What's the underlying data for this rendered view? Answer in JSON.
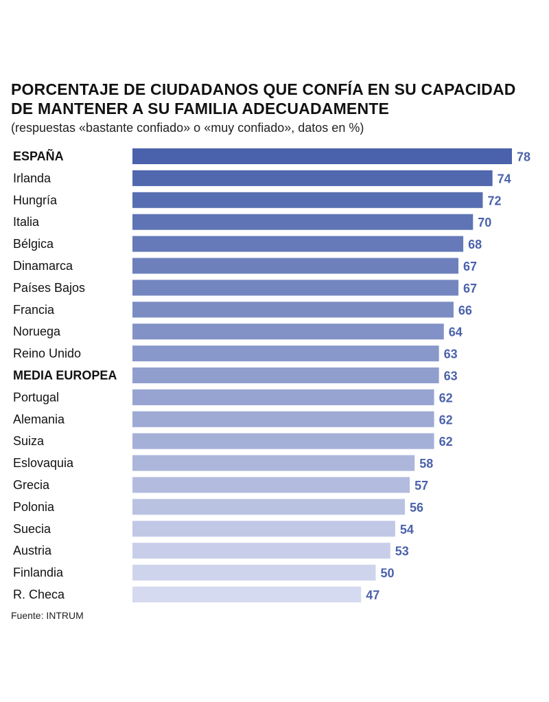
{
  "title": "PORCENTAJE DE CIUDADANOS QUE CONFÍA EN SU CAPACIDAD DE MANTENER A SU FAMILIA ADECUADAMENTE",
  "subtitle": "(respuestas «bastante confiado» o «muy confiado», datos en %)",
  "source": "Fuente: INTRUM",
  "colors": {
    "bar_dark": "#4a62ab",
    "bar_light": "#d6daf0",
    "value_text": "#4a62ab"
  },
  "chart_data": {
    "type": "bar",
    "orientation": "horizontal",
    "categories": [
      "ESPAÑA",
      "Irlanda",
      "Hungría",
      "Italia",
      "Bélgica",
      "Dinamarca",
      "Países Bajos",
      "Francia",
      "Noruega",
      "Reino Unido",
      "MEDIA EUROPEA",
      "Portugal",
      "Alemania",
      "Suiza",
      "Eslovaquia",
      "Grecia",
      "Polonia",
      "Suecia",
      "Austria",
      "Finlandia",
      "R. Checa"
    ],
    "values": [
      78,
      74,
      72,
      70,
      68,
      67,
      67,
      66,
      64,
      63,
      63,
      62,
      62,
      62,
      58,
      57,
      56,
      54,
      53,
      50,
      47
    ],
    "bold_categories": [
      "ESPAÑA",
      "MEDIA EUROPEA"
    ],
    "xlim": [
      0,
      78
    ],
    "grid": false,
    "data_labels": true
  }
}
